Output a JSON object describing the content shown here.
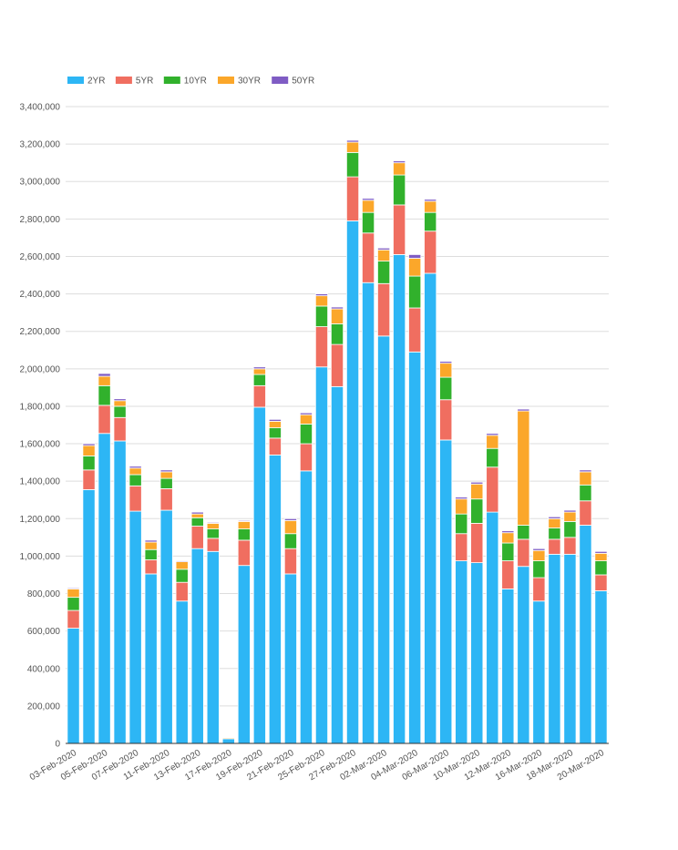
{
  "chart_data": {
    "type": "bar",
    "stacked": true,
    "legend_position": "top-left",
    "grid": true,
    "ylim": [
      0,
      3400000
    ],
    "yticks": [
      0,
      200000,
      400000,
      600000,
      800000,
      1000000,
      1200000,
      1400000,
      1600000,
      1800000,
      2000000,
      2200000,
      2400000,
      2600000,
      2800000,
      3000000,
      3200000,
      3400000
    ],
    "ytick_labels": [
      "0",
      "200,000",
      "400,000",
      "600,000",
      "800,000",
      "1,000,000",
      "1,200,000",
      "1,400,000",
      "1,600,000",
      "1,800,000",
      "2,000,000",
      "2,200,000",
      "2,400,000",
      "2,600,000",
      "2,800,000",
      "3,000,000",
      "3,200,000",
      "3,400,000"
    ],
    "categories": [
      "03-Feb-2020",
      "04-Feb-2020",
      "05-Feb-2020",
      "06-Feb-2020",
      "07-Feb-2020",
      "10-Feb-2020",
      "11-Feb-2020",
      "12-Feb-2020",
      "13-Feb-2020",
      "14-Feb-2020",
      "17-Feb-2020",
      "18-Feb-2020",
      "19-Feb-2020",
      "20-Feb-2020",
      "21-Feb-2020",
      "24-Feb-2020",
      "25-Feb-2020",
      "26-Feb-2020",
      "27-Feb-2020",
      "28-Feb-2020",
      "02-Mar-2020",
      "03-Mar-2020",
      "04-Mar-2020",
      "05-Mar-2020",
      "06-Mar-2020",
      "09-Mar-2020",
      "10-Mar-2020",
      "11-Mar-2020",
      "12-Mar-2020",
      "13-Mar-2020",
      "16-Mar-2020",
      "17-Mar-2020",
      "18-Mar-2020",
      "19-Mar-2020",
      "20-Mar-2020"
    ],
    "xtick_labels": [
      "03-Feb-2020",
      "",
      "05-Feb-2020",
      "",
      "07-Feb-2020",
      "",
      "11-Feb-2020",
      "",
      "13-Feb-2020",
      "",
      "17-Feb-2020",
      "",
      "19-Feb-2020",
      "",
      "21-Feb-2020",
      "",
      "25-Feb-2020",
      "",
      "27-Feb-2020",
      "",
      "02-Mar-2020",
      "",
      "04-Mar-2020",
      "",
      "06-Mar-2020",
      "",
      "10-Mar-2020",
      "",
      "12-Mar-2020",
      "",
      "16-Mar-2020",
      "",
      "18-Mar-2020",
      "",
      "20-Mar-2020"
    ],
    "series": [
      {
        "name": "2YR",
        "color": "#2db6f5",
        "values": [
          615000,
          1355000,
          1655000,
          1615000,
          1240000,
          905000,
          1245000,
          760000,
          1040000,
          1025000,
          25000,
          950000,
          1795000,
          1540000,
          905000,
          1455000,
          2010000,
          1905000,
          2790000,
          2460000,
          2175000,
          2610000,
          2090000,
          2510000,
          1620000,
          975000,
          965000,
          1235000,
          825000,
          945000,
          760000,
          1010000,
          1010000,
          1165000,
          815000
        ]
      },
      {
        "name": "5YR",
        "color": "#f06e60",
        "values": [
          95000,
          105000,
          150000,
          125000,
          135000,
          75000,
          115000,
          100000,
          120000,
          70000,
          0,
          135000,
          115000,
          90000,
          135000,
          145000,
          215000,
          225000,
          235000,
          265000,
          280000,
          265000,
          235000,
          225000,
          215000,
          145000,
          210000,
          240000,
          150000,
          145000,
          125000,
          80000,
          90000,
          130000,
          85000
        ]
      },
      {
        "name": "10YR",
        "color": "#31b12c",
        "values": [
          70000,
          75000,
          105000,
          60000,
          60000,
          55000,
          55000,
          70000,
          45000,
          50000,
          0,
          60000,
          60000,
          55000,
          80000,
          105000,
          110000,
          110000,
          130000,
          110000,
          120000,
          160000,
          170000,
          100000,
          120000,
          105000,
          130000,
          100000,
          95000,
          75000,
          90000,
          60000,
          85000,
          85000,
          75000
        ]
      },
      {
        "name": "30YR",
        "color": "#fba72a",
        "values": [
          45000,
          55000,
          50000,
          30000,
          35000,
          40000,
          35000,
          40000,
          20000,
          30000,
          5000,
          40000,
          30000,
          35000,
          70000,
          50000,
          55000,
          80000,
          55000,
          65000,
          60000,
          65000,
          95000,
          60000,
          75000,
          80000,
          80000,
          70000,
          55000,
          610000,
          55000,
          50000,
          50000,
          70000,
          40000
        ]
      },
      {
        "name": "50YR",
        "color": "#7f5cc4",
        "values": [
          5000,
          10000,
          15000,
          10000,
          10000,
          10000,
          10000,
          5000,
          10000,
          5000,
          0,
          5000,
          10000,
          10000,
          10000,
          10000,
          10000,
          10000,
          10000,
          10000,
          10000,
          10000,
          20000,
          10000,
          10000,
          10000,
          10000,
          10000,
          10000,
          10000,
          10000,
          10000,
          10000,
          10000,
          10000
        ]
      }
    ]
  }
}
